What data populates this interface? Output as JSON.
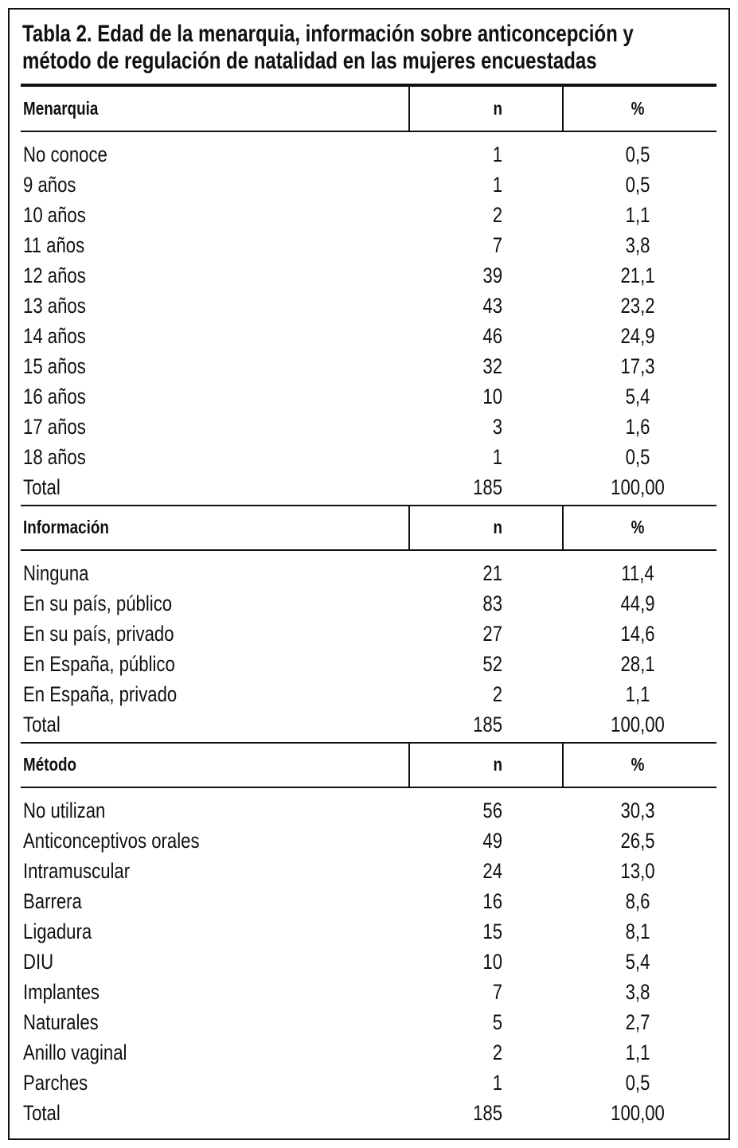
{
  "title": [
    "Tabla 2. Edad de la menarquia, información sobre anticoncepción y",
    "método de regulación de natalidad en las mujeres encuestadas"
  ],
  "sections": [
    {
      "header": [
        "Menarquia",
        "n",
        "%"
      ],
      "rows": [
        [
          "No conoce",
          "1",
          "0,5"
        ],
        [
          "9 años",
          "1",
          "0,5"
        ],
        [
          "10 años",
          "2",
          "1,1"
        ],
        [
          "11 años",
          "7",
          "3,8"
        ],
        [
          "12 años",
          "39",
          "21,1"
        ],
        [
          "13 años",
          "43",
          "23,2"
        ],
        [
          "14 años",
          "46",
          "24,9"
        ],
        [
          "15 años",
          "32",
          "17,3"
        ],
        [
          "16 años",
          "10",
          "5,4"
        ],
        [
          "17 años",
          "3",
          "1,6"
        ],
        [
          "18 años",
          "1",
          "0,5"
        ],
        [
          "Total",
          "185",
          "100,00"
        ]
      ]
    },
    {
      "header": [
        "Información",
        "n",
        "%"
      ],
      "rows": [
        [
          "Ninguna",
          "21",
          "11,4"
        ],
        [
          "En su país, público",
          "83",
          "44,9"
        ],
        [
          "En su país, privado",
          "27",
          "14,6"
        ],
        [
          "En España, público",
          "52",
          "28,1"
        ],
        [
          "En España, privado",
          "2",
          "1,1"
        ],
        [
          "Total",
          "185",
          "100,00"
        ]
      ]
    },
    {
      "header": [
        "Método",
        "n",
        "%"
      ],
      "rows": [
        [
          "No utilizan",
          "56",
          "30,3"
        ],
        [
          "Anticonceptivos orales",
          "49",
          "26,5"
        ],
        [
          "Intramuscular",
          "24",
          "13,0"
        ],
        [
          "Barrera",
          "16",
          "8,6"
        ],
        [
          "Ligadura",
          "15",
          "8,1"
        ],
        [
          "DIU",
          "10",
          "5,4"
        ],
        [
          "Implantes",
          "7",
          "3,8"
        ],
        [
          "Naturales",
          "5",
          "2,7"
        ],
        [
          "Anillo vaginal",
          "2",
          "1,1"
        ],
        [
          "Parches",
          "1",
          "0,5"
        ],
        [
          "Total",
          "185",
          "100,00"
        ]
      ]
    }
  ]
}
